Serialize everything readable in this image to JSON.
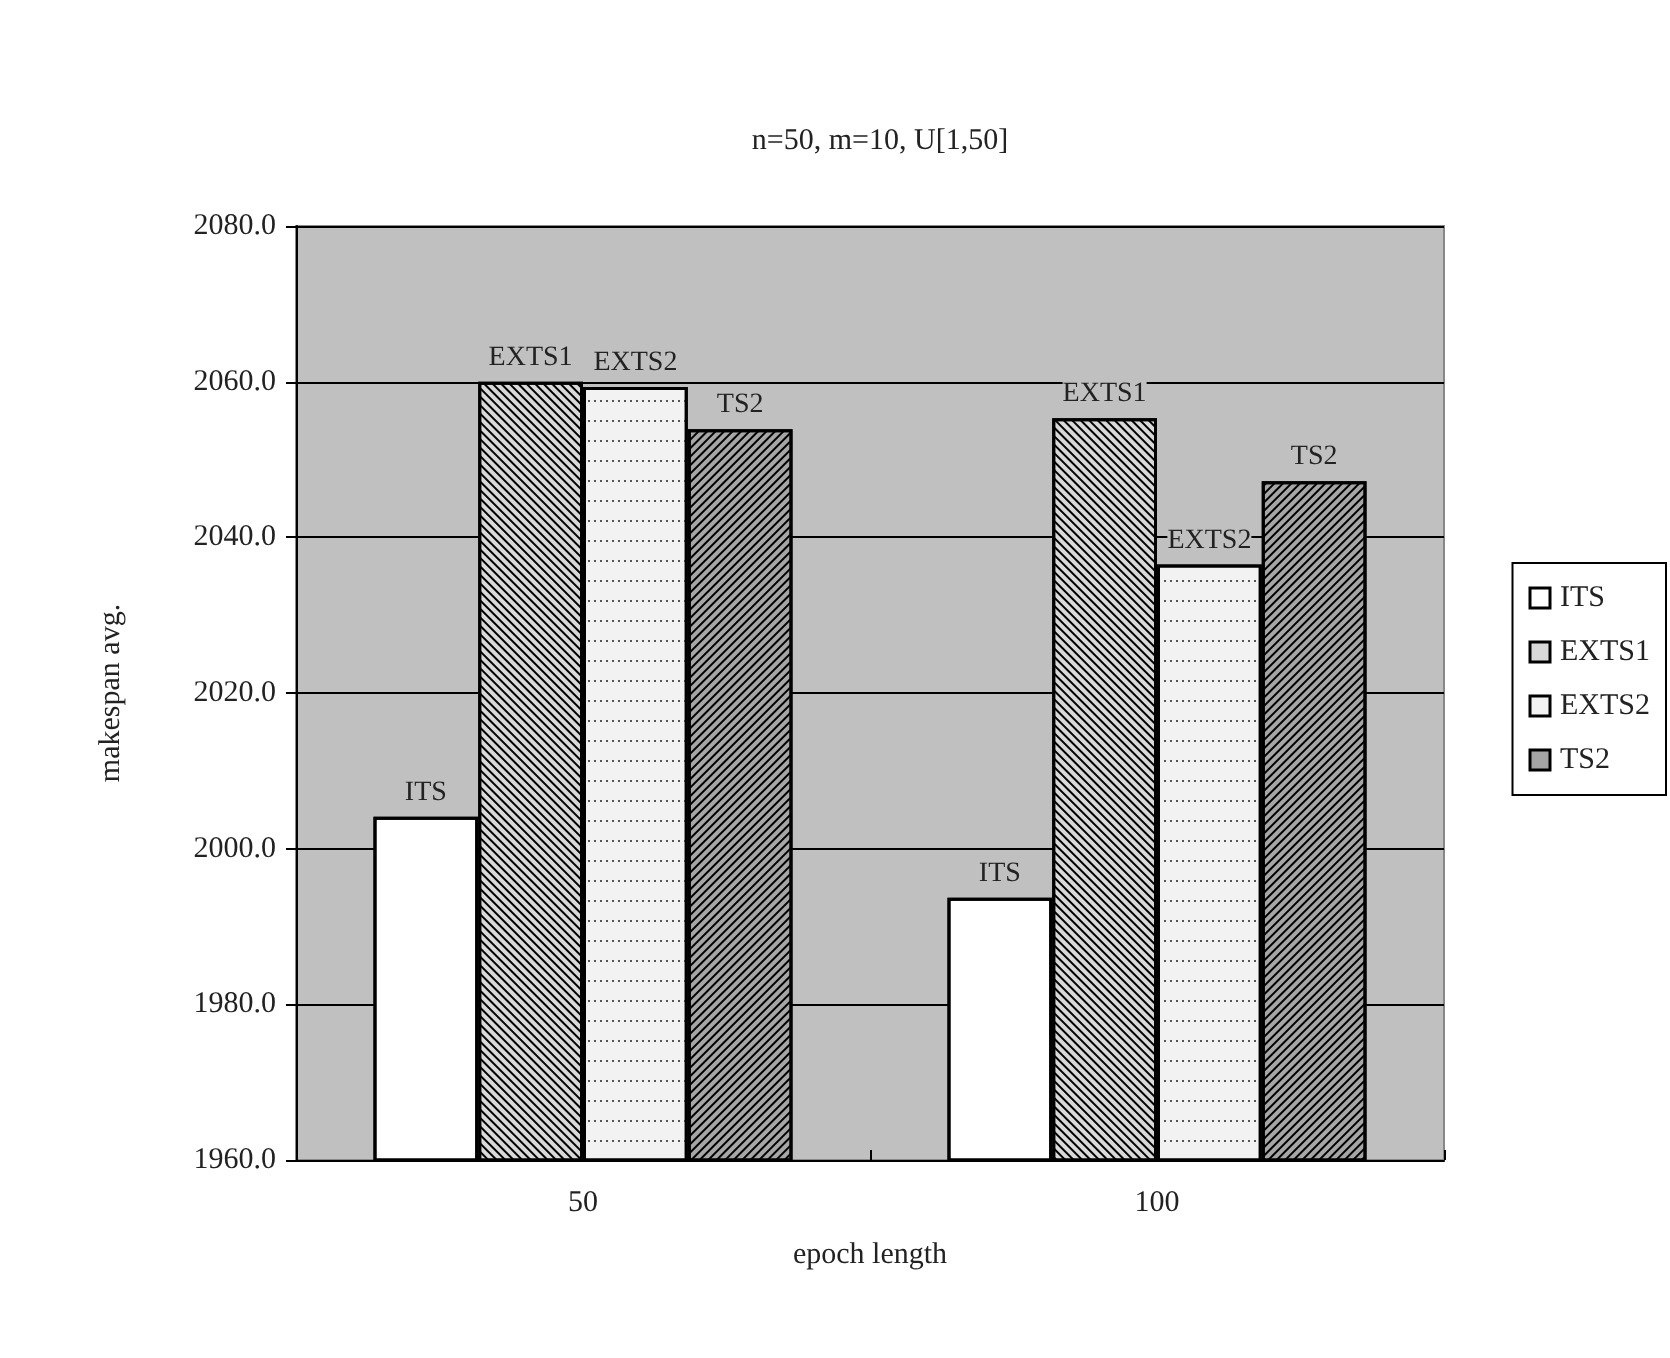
{
  "chart_data": {
    "type": "bar",
    "title": "n=50, m=10, U[1,50]",
    "xlabel": "epoch length",
    "ylabel": "makespan avg.",
    "categories": [
      "50",
      "100"
    ],
    "series": [
      {
        "name": "ITS",
        "color": "#ffffff",
        "values": [
          2004.1,
          1993.7
        ],
        "value_labels": [
          "ITS",
          "ITS"
        ]
      },
      {
        "name": "EXTS1",
        "color": "#d9d9d9",
        "values": [
          2060.0,
          2055.3
        ],
        "value_labels": [
          "EXTS1",
          "EXTS1"
        ]
      },
      {
        "name": "EXTS2",
        "color": "#f2f2f2",
        "values": [
          2059.3,
          2036.5
        ],
        "value_labels": [
          "EXTS2",
          "EXTS2"
        ]
      },
      {
        "name": "TS2",
        "color": "#a6a6a6",
        "values": [
          2053.9,
          2047.2
        ],
        "value_labels": [
          "TS2",
          "TS2"
        ]
      }
    ],
    "ylim": [
      1960,
      2080
    ],
    "yticks": [
      {
        "value": 1960,
        "label": "1960.0"
      },
      {
        "value": 1980,
        "label": "1980.0"
      },
      {
        "value": 2000,
        "label": "2000.0"
      },
      {
        "value": 2020,
        "label": "2020.0"
      },
      {
        "value": 2040,
        "label": "2040.0"
      },
      {
        "value": 2060,
        "label": "2060.0"
      },
      {
        "value": 2080,
        "label": "2080.0"
      }
    ],
    "grid": "y",
    "legend": "right"
  }
}
